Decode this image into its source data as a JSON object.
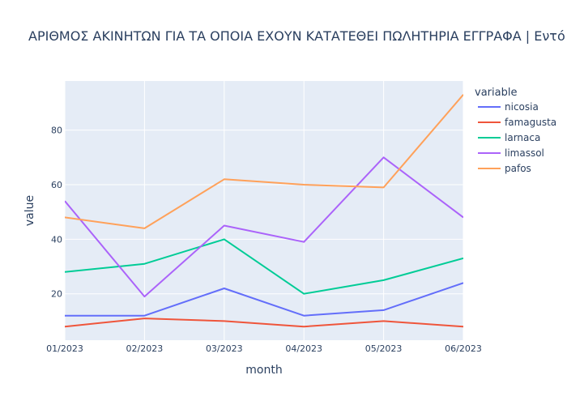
{
  "chart_data": {
    "type": "line",
    "title": "ΑΡΙΘΜΟΣ ΑΚΙΝΗΤΩΝ ΓΙΑ ΤΑ ΟΠΟΙΑ ΕΧΟΥΝ ΚΑΤΑΤΕΘΕΙ ΠΩΛΗΤΗΡΙΑ ΕΓΓΡΑΦΑ | Εντό",
    "xlabel": "month",
    "ylabel": "value",
    "categories": [
      "01/2023",
      "02/2023",
      "03/2023",
      "04/2023",
      "05/2023",
      "06/2023"
    ],
    "ylim": [
      3,
      98
    ],
    "yticks": [
      20,
      40,
      60,
      80
    ],
    "grid": true,
    "legend_title": "variable",
    "legend_position": "right",
    "series": [
      {
        "name": "nicosia",
        "color": "#636efa",
        "values": [
          12,
          12,
          22,
          12,
          14,
          24
        ]
      },
      {
        "name": "famagusta",
        "color": "#ef553b",
        "values": [
          8,
          11,
          10,
          8,
          10,
          8
        ]
      },
      {
        "name": "larnaca",
        "color": "#00cc96",
        "values": [
          28,
          31,
          40,
          20,
          25,
          33
        ]
      },
      {
        "name": "limassol",
        "color": "#ab63fa",
        "values": [
          54,
          19,
          45,
          39,
          70,
          48
        ]
      },
      {
        "name": "pafos",
        "color": "#ffa15a",
        "values": [
          48,
          44,
          62,
          60,
          59,
          93
        ]
      }
    ]
  }
}
